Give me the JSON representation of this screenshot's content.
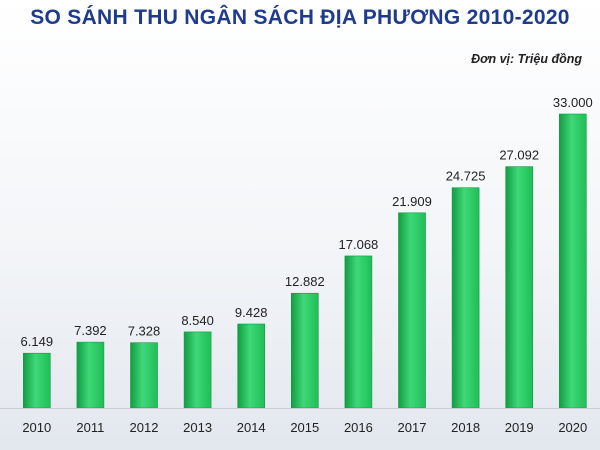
{
  "chart_data": {
    "type": "bar",
    "title": "SO SÁNH THU NGÂN SÁCH ĐỊA PHƯƠNG 2010-2020",
    "unit_label": "Đơn vị: Triệu đồng",
    "categories": [
      "2010",
      "2011",
      "2012",
      "2013",
      "2014",
      "2015",
      "2016",
      "2017",
      "2018",
      "2019",
      "2020"
    ],
    "values": [
      6149,
      7392,
      7328,
      8540,
      9428,
      12882,
      17068,
      21909,
      24725,
      27092,
      33000
    ],
    "value_labels": [
      "6.149",
      "7.392",
      "7.328",
      "8.540",
      "9.428",
      "12.882",
      "17.068",
      "21.909",
      "24.725",
      "27.092",
      "33.000"
    ],
    "xlabel": "",
    "ylabel": "",
    "ylim": [
      0,
      33000
    ],
    "grid": false,
    "legend": "none",
    "colors": {
      "bar": "#1ebe57",
      "bar_light": "#3fd878",
      "bar_dark": "#129c43",
      "title": "#1f3c8c",
      "label": "#222222",
      "axis": "#c8ccd4"
    }
  }
}
